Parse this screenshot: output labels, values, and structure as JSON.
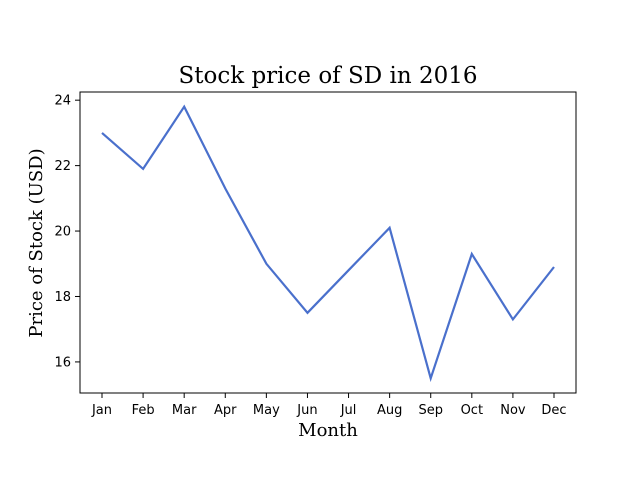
{
  "chart_data": {
    "type": "line",
    "title": "Stock price of SD in 2016",
    "xlabel": "Month",
    "ylabel": "Price of Stock (USD)",
    "categories": [
      "Jan",
      "Feb",
      "Mar",
      "Apr",
      "May",
      "Jun",
      "Jul",
      "Aug",
      "Sep",
      "Oct",
      "Nov",
      "Dec"
    ],
    "series": [
      {
        "values": [
          23.0,
          21.9,
          23.8,
          21.3,
          19.0,
          17.5,
          18.8,
          20.1,
          15.5,
          19.3,
          17.3,
          18.9
        ]
      }
    ],
    "ylim": [
      15.05,
      24.25
    ],
    "yticks": [
      16,
      18,
      20,
      22,
      24
    ],
    "grid": false,
    "line_color": "#4a70cc",
    "background": "#ffffff"
  }
}
